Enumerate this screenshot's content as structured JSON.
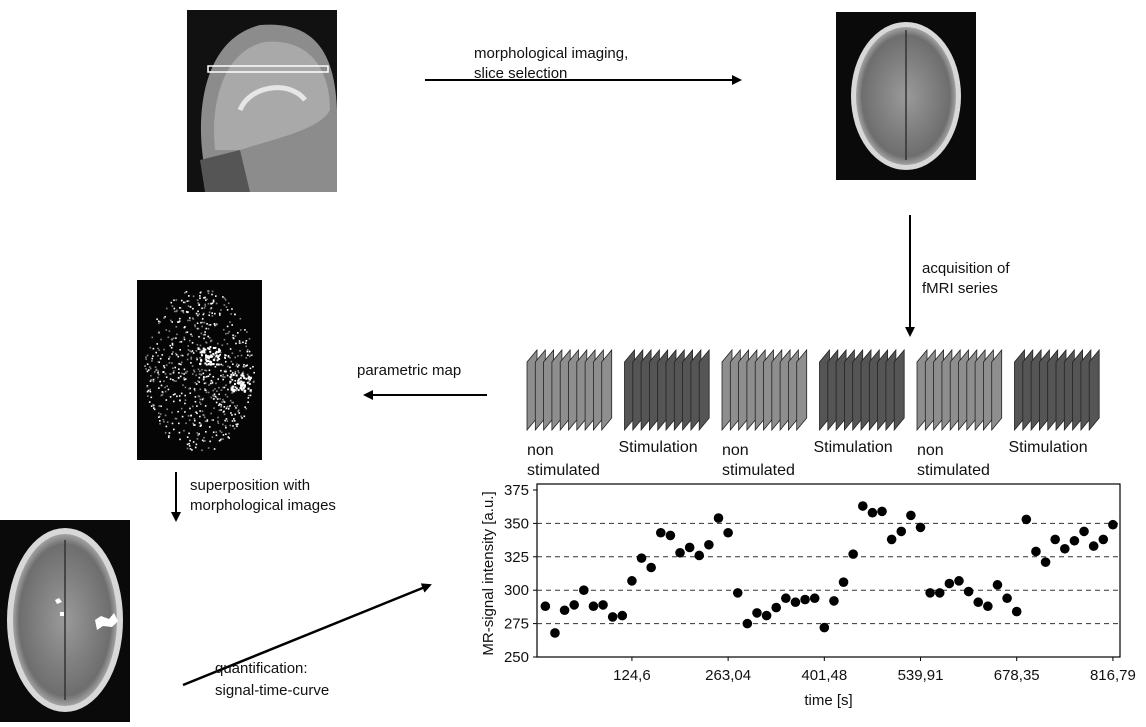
{
  "labels": {
    "slice_selection": [
      "morphological imaging,",
      "slice selection"
    ],
    "acquisition": [
      "acquisition of",
      "fMRI series"
    ],
    "parametric_map": "parametric map",
    "superposition": [
      "superposition with",
      "morphological images"
    ],
    "quantification": [
      "quantification:",
      "signal-time-curve"
    ],
    "phases": [
      [
        "non",
        "stimulated"
      ],
      [
        "Stimulation"
      ],
      [
        "non",
        "stimulated"
      ],
      [
        "Stimulation"
      ],
      [
        "non",
        "stimulated"
      ],
      [
        "Stimulation"
      ]
    ]
  },
  "chart_data": {
    "type": "scatter",
    "x_label": "time [s]",
    "y_label": "MR-signal intensity  [a.u.]",
    "x": [
      0,
      13.84,
      27.69,
      41.53,
      55.38,
      69.22,
      83.06,
      96.91,
      110.75,
      124.6,
      138.44,
      152.28,
      166.13,
      179.97,
      193.82,
      207.66,
      221.5,
      235.35,
      249.19,
      263.04,
      276.88,
      290.72,
      304.57,
      318.41,
      332.26,
      346.1,
      359.94,
      373.79,
      387.63,
      401.48,
      415.32,
      429.16,
      443.01,
      456.85,
      470.7,
      484.54,
      498.38,
      512.23,
      526.07,
      539.91,
      553.76,
      567.6,
      581.44,
      595.29,
      609.13,
      622.98,
      636.82,
      650.66,
      664.51,
      678.35,
      692.19,
      706.04,
      719.88,
      733.72,
      747.57,
      761.41,
      775.25,
      789.1,
      802.94,
      816.79
    ],
    "values": [
      288,
      268,
      285,
      289,
      300,
      288,
      289,
      280,
      281,
      307,
      324,
      317,
      343,
      341,
      328,
      332,
      326,
      334,
      354,
      343,
      298,
      275,
      283,
      281,
      287,
      294,
      291,
      293,
      294,
      272,
      292,
      306,
      327,
      363,
      358,
      359,
      338,
      344,
      356,
      347,
      298,
      298,
      305,
      307,
      299,
      291,
      288,
      304,
      294,
      284,
      353,
      329,
      321,
      338,
      331,
      337,
      344,
      333,
      338,
      349
    ],
    "color": "#000000",
    "xlim": [
      -12,
      827
    ],
    "ylim": [
      250,
      375
    ],
    "xticks": [
      {
        "value": 124.6,
        "label": "124,6"
      },
      {
        "value": 263.04,
        "label": "263,04"
      },
      {
        "value": 401.48,
        "label": "401,48"
      },
      {
        "value": 539.91,
        "label": "539,91"
      },
      {
        "value": 678.35,
        "label": "678,35"
      },
      {
        "value": 816.79,
        "label": "816,79"
      }
    ],
    "yticks": [
      250,
      275,
      300,
      325,
      350,
      375
    ],
    "grid": true
  }
}
